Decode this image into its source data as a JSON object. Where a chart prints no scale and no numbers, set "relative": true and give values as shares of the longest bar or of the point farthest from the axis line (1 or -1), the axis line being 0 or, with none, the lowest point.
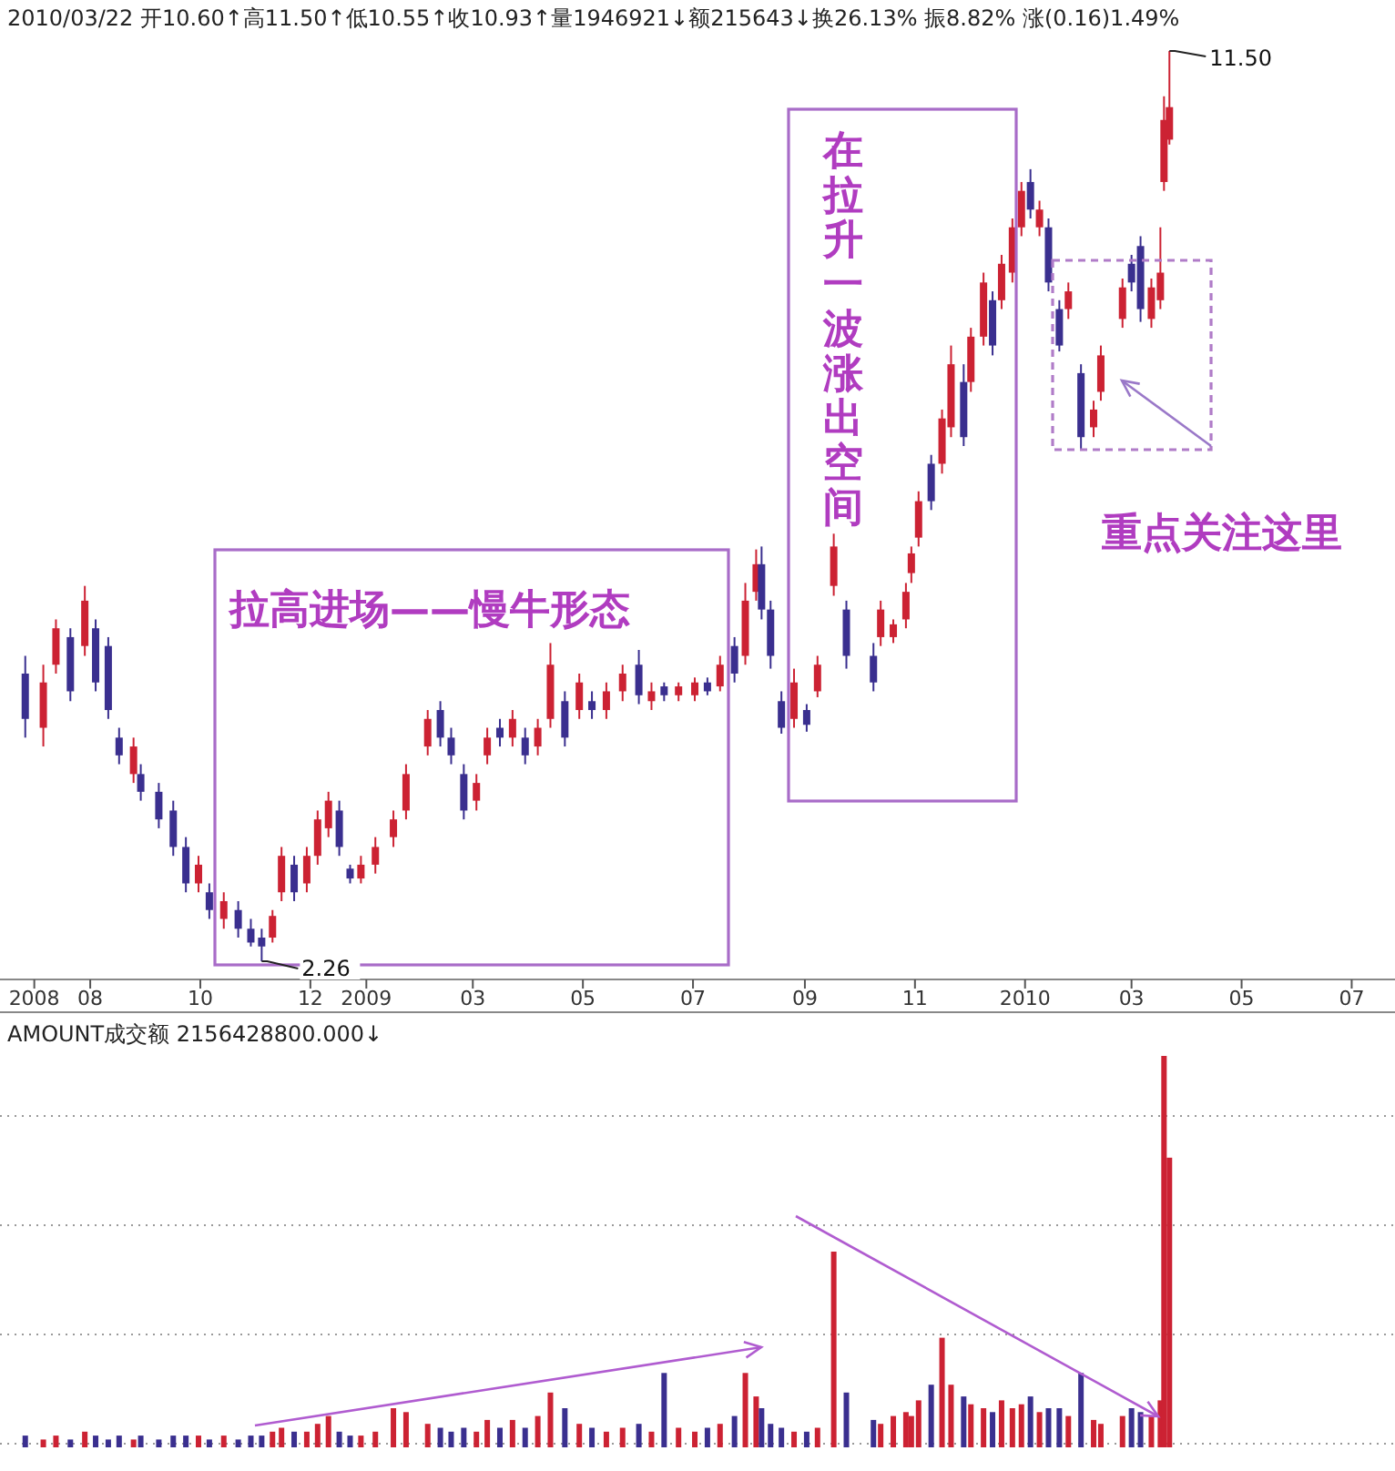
{
  "chart_data": [
    {
      "type": "candlestick",
      "title": "2010/03/22 开10.60↑高11.50↑低10.55↑收10.93↑量1946921↓额215643↓换26.13% 振8.82% 涨(0.16)1.49%",
      "x": [
        "2008-06-26",
        "2008-07-06",
        "2008-07-13",
        "2008-07-21",
        "2008-07-29",
        "2008-08-04",
        "2008-08-11",
        "2008-08-17",
        "2008-08-25",
        "2008-08-29",
        "2008-09-08",
        "2008-09-16",
        "2008-09-23",
        "2008-09-30",
        "2008-10-06",
        "2008-10-14",
        "2008-10-22",
        "2008-10-29",
        "2008-11-04",
        "2008-11-10",
        "2008-11-15",
        "2008-11-22",
        "2008-11-29",
        "2008-12-05",
        "2008-12-11",
        "2008-12-17",
        "2008-12-23",
        "2008-12-29",
        "2009-01-06",
        "2009-01-16",
        "2009-01-23",
        "2009-02-04",
        "2009-02-11",
        "2009-02-17",
        "2009-02-24",
        "2009-03-03",
        "2009-03-09",
        "2009-03-16",
        "2009-03-23",
        "2009-03-30",
        "2009-04-06",
        "2009-04-13",
        "2009-04-21",
        "2009-04-29",
        "2009-05-06",
        "2009-05-14",
        "2009-05-23",
        "2009-06-01",
        "2009-06-08",
        "2009-06-15",
        "2009-06-23",
        "2009-07-02",
        "2009-07-09",
        "2009-07-16",
        "2009-07-24",
        "2009-07-30",
        "2009-08-05",
        "2009-08-08",
        "2009-08-13",
        "2009-08-19",
        "2009-08-26",
        "2009-09-02",
        "2009-09-08",
        "2009-09-17",
        "2009-09-24",
        "2009-10-09",
        "2009-10-13",
        "2009-10-20",
        "2009-10-27",
        "2009-10-30",
        "2009-11-03",
        "2009-11-10",
        "2009-11-16",
        "2009-11-21",
        "2009-11-28",
        "2009-12-02",
        "2009-12-09",
        "2009-12-14",
        "2009-12-19",
        "2009-12-25",
        "2009-12-30",
        "2010-01-04",
        "2010-01-09",
        "2010-01-14",
        "2010-01-20",
        "2010-01-25",
        "2010-02-01",
        "2010-02-08",
        "2010-02-12",
        "2010-02-24",
        "2010-03-01",
        "2010-03-06",
        "2010-03-12",
        "2010-03-17",
        "2010-03-19",
        "2010-03-22"
      ],
      "ohlc": [
        [
          5.18,
          5.36,
          4.53,
          4.72
        ],
        [
          4.63,
          5.27,
          4.44,
          5.09
        ],
        [
          5.27,
          5.73,
          5.18,
          5.64
        ],
        [
          5.55,
          5.64,
          4.9,
          5.0
        ],
        [
          5.46,
          6.07,
          5.36,
          5.92
        ],
        [
          5.64,
          5.73,
          5.0,
          5.09
        ],
        [
          5.46,
          5.55,
          4.72,
          4.81
        ],
        [
          4.53,
          4.63,
          4.26,
          4.35
        ],
        [
          4.16,
          4.53,
          4.07,
          4.44
        ],
        [
          4.16,
          4.26,
          3.89,
          3.98
        ],
        [
          3.98,
          4.07,
          3.61,
          3.7
        ],
        [
          3.79,
          3.89,
          3.33,
          3.42
        ],
        [
          3.42,
          3.52,
          2.96,
          3.05
        ],
        [
          3.05,
          3.33,
          2.96,
          3.24
        ],
        [
          2.96,
          3.05,
          2.69,
          2.78
        ],
        [
          2.69,
          2.96,
          2.59,
          2.87
        ],
        [
          2.78,
          2.87,
          2.5,
          2.59
        ],
        [
          2.59,
          2.69,
          2.41,
          2.45
        ],
        [
          2.5,
          2.59,
          2.26,
          2.41
        ],
        [
          2.5,
          2.78,
          2.45,
          2.72
        ],
        [
          2.96,
          3.42,
          2.87,
          3.33
        ],
        [
          3.24,
          3.33,
          2.87,
          2.96
        ],
        [
          3.05,
          3.42,
          2.96,
          3.33
        ],
        [
          3.33,
          3.79,
          3.24,
          3.7
        ],
        [
          3.61,
          3.98,
          3.52,
          3.89
        ],
        [
          3.79,
          3.89,
          3.33,
          3.42
        ],
        [
          3.2,
          3.24,
          3.05,
          3.1
        ],
        [
          3.1,
          3.33,
          3.05,
          3.24
        ],
        [
          3.24,
          3.52,
          3.15,
          3.42
        ],
        [
          3.52,
          3.79,
          3.42,
          3.7
        ],
        [
          3.79,
          4.26,
          3.7,
          4.16
        ],
        [
          4.44,
          4.81,
          4.35,
          4.72
        ],
        [
          4.81,
          4.9,
          4.44,
          4.53
        ],
        [
          4.53,
          4.63,
          4.26,
          4.35
        ],
        [
          4.16,
          4.26,
          3.7,
          3.79
        ],
        [
          3.89,
          4.16,
          3.79,
          4.07
        ],
        [
          4.35,
          4.63,
          4.26,
          4.53
        ],
        [
          4.63,
          4.72,
          4.44,
          4.53
        ],
        [
          4.53,
          4.81,
          4.44,
          4.72
        ],
        [
          4.53,
          4.63,
          4.26,
          4.35
        ],
        [
          4.44,
          4.72,
          4.35,
          4.63
        ],
        [
          4.72,
          5.49,
          4.63,
          5.27
        ],
        [
          4.9,
          5.0,
          4.44,
          4.53
        ],
        [
          4.81,
          5.18,
          4.72,
          5.09
        ],
        [
          4.9,
          5.0,
          4.72,
          4.81
        ],
        [
          4.81,
          5.09,
          4.72,
          5.0
        ],
        [
          5.0,
          5.27,
          4.9,
          5.18
        ],
        [
          5.27,
          5.42,
          4.87,
          4.96
        ],
        [
          4.9,
          5.09,
          4.81,
          5.0
        ],
        [
          5.05,
          5.09,
          4.9,
          4.96
        ],
        [
          4.96,
          5.09,
          4.9,
          5.05
        ],
        [
          4.96,
          5.14,
          4.9,
          5.09
        ],
        [
          5.09,
          5.14,
          4.96,
          5.0
        ],
        [
          5.05,
          5.36,
          5.0,
          5.27
        ],
        [
          5.46,
          5.55,
          5.09,
          5.18
        ],
        [
          5.36,
          6.1,
          5.27,
          5.92
        ],
        [
          6.01,
          6.44,
          5.92,
          6.29
        ],
        [
          6.29,
          6.47,
          5.73,
          5.83
        ],
        [
          5.83,
          5.92,
          5.23,
          5.36
        ],
        [
          4.9,
          5.0,
          4.57,
          4.63
        ],
        [
          4.72,
          5.23,
          4.63,
          5.09
        ],
        [
          4.81,
          4.87,
          4.59,
          4.66
        ],
        [
          5.0,
          5.36,
          4.94,
          5.27
        ],
        [
          6.07,
          6.6,
          5.97,
          6.47
        ],
        [
          5.83,
          5.92,
          5.23,
          5.36
        ],
        [
          5.36,
          5.49,
          5.0,
          5.09
        ],
        [
          5.55,
          5.92,
          5.46,
          5.83
        ],
        [
          5.55,
          5.73,
          5.49,
          5.68
        ],
        [
          5.73,
          6.1,
          5.64,
          6.01
        ],
        [
          6.2,
          6.47,
          6.1,
          6.4
        ],
        [
          6.56,
          7.03,
          6.47,
          6.93
        ],
        [
          7.31,
          7.4,
          6.84,
          6.93
        ],
        [
          7.31,
          7.86,
          7.21,
          7.77
        ],
        [
          7.68,
          8.51,
          7.58,
          8.32
        ],
        [
          8.14,
          8.32,
          7.49,
          7.58
        ],
        [
          8.14,
          8.69,
          8.04,
          8.6
        ],
        [
          8.6,
          9.25,
          8.51,
          9.15
        ],
        [
          8.97,
          9.06,
          8.41,
          8.51
        ],
        [
          8.97,
          9.43,
          8.88,
          9.34
        ],
        [
          9.25,
          9.8,
          9.15,
          9.71
        ],
        [
          9.71,
          10.17,
          9.62,
          10.08
        ],
        [
          10.17,
          10.3,
          9.8,
          9.89
        ],
        [
          9.71,
          9.98,
          9.62,
          9.89
        ],
        [
          9.71,
          9.8,
          9.06,
          9.15
        ],
        [
          8.88,
          8.97,
          8.45,
          8.51
        ],
        [
          8.88,
          9.15,
          8.78,
          9.06
        ],
        [
          8.23,
          8.32,
          7.45,
          7.58
        ],
        [
          7.68,
          7.95,
          7.58,
          7.86
        ],
        [
          8.04,
          8.51,
          7.95,
          8.41
        ],
        [
          8.78,
          9.19,
          8.69,
          9.1
        ],
        [
          9.34,
          9.43,
          9.06,
          9.15
        ],
        [
          9.52,
          9.62,
          8.75,
          8.88
        ],
        [
          8.78,
          9.19,
          8.69,
          9.1
        ],
        [
          8.97,
          9.71,
          8.88,
          9.25
        ],
        [
          10.17,
          11.04,
          10.08,
          10.8
        ],
        [
          10.6,
          11.5,
          10.55,
          10.93
        ]
      ],
      "colors": [
        "#3a2f8f",
        "#cc2233",
        "#cc2233",
        "#3a2f8f",
        "#cc2233",
        "#3a2f8f",
        "#3a2f8f",
        "#3a2f8f",
        "#cc2233",
        "#3a2f8f",
        "#3a2f8f",
        "#3a2f8f",
        "#3a2f8f",
        "#cc2233",
        "#3a2f8f",
        "#cc2233",
        "#3a2f8f",
        "#3a2f8f",
        "#3a2f8f",
        "#cc2233",
        "#cc2233",
        "#3a2f8f",
        "#cc2233",
        "#cc2233",
        "#cc2233",
        "#3a2f8f",
        "#3a2f8f",
        "#cc2233",
        "#cc2233",
        "#cc2233",
        "#cc2233",
        "#cc2233",
        "#3a2f8f",
        "#3a2f8f",
        "#3a2f8f",
        "#cc2233",
        "#cc2233",
        "#3a2f8f",
        "#cc2233",
        "#3a2f8f",
        "#cc2233",
        "#cc2233",
        "#3a2f8f",
        "#cc2233",
        "#3a2f8f",
        "#cc2233",
        "#cc2233",
        "#3a2f8f",
        "#cc2233",
        "#3a2f8f",
        "#cc2233",
        "#cc2233",
        "#3a2f8f",
        "#cc2233",
        "#3a2f8f",
        "#cc2233",
        "#cc2233",
        "#3a2f8f",
        "#3a2f8f",
        "#3a2f8f",
        "#cc2233",
        "#3a2f8f",
        "#cc2233",
        "#cc2233",
        "#3a2f8f",
        "#3a2f8f",
        "#cc2233",
        "#cc2233",
        "#cc2233",
        "#cc2233",
        "#cc2233",
        "#3a2f8f",
        "#cc2233",
        "#cc2233",
        "#3a2f8f",
        "#cc2233",
        "#cc2233",
        "#3a2f8f",
        "#cc2233",
        "#cc2233",
        "#cc2233",
        "#3a2f8f",
        "#cc2233",
        "#3a2f8f",
        "#3a2f8f",
        "#cc2233",
        "#3a2f8f",
        "#cc2233",
        "#cc2233",
        "#cc2233",
        "#3a2f8f",
        "#3a2f8f",
        "#cc2233",
        "#cc2233",
        "#cc2233",
        "#cc2233"
      ],
      "xlim": [
        "2008-06-12",
        "2010-07-25"
      ],
      "xticks": [
        {
          "value": "2008-07-01",
          "label": "2008"
        },
        {
          "value": "2008-08-01",
          "label": "08"
        },
        {
          "value": "2008-10-01",
          "label": "10"
        },
        {
          "value": "2008-12-01",
          "label": "12"
        },
        {
          "value": "2009-01-01",
          "label": "2009"
        },
        {
          "value": "2009-03-01",
          "label": "03"
        },
        {
          "value": "2009-05-01",
          "label": "05"
        },
        {
          "value": "2009-07-01",
          "label": "07"
        },
        {
          "value": "2009-09-01",
          "label": "09"
        },
        {
          "value": "2009-11-01",
          "label": "11"
        },
        {
          "value": "2010-01-01",
          "label": "2010"
        },
        {
          "value": "2010-03-01",
          "label": "03"
        },
        {
          "value": "2010-05-01",
          "label": "05"
        },
        {
          "value": "2010-07-01",
          "label": "07"
        }
      ],
      "tick_labels": "x",
      "annotations": [
        {
          "text": "2.26",
          "x": "2008-11-04",
          "y": 2.26
        },
        {
          "text": "11.50",
          "x": "2010-03-22",
          "y": 11.5
        },
        "拉高进场——慢牛形态",
        "在拉升一波涨出空间",
        "重点关注这里"
      ]
    },
    {
      "type": "bar",
      "title": "AMOUNT成交额 2156428800.000↓",
      "relative": true,
      "grid": "y",
      "xlim": [
        "2008-06-12",
        "2010-07-25"
      ],
      "x": [
        "2008-06-26",
        "2008-07-06",
        "2008-07-13",
        "2008-07-21",
        "2008-07-29",
        "2008-08-04",
        "2008-08-11",
        "2008-08-17",
        "2008-08-25",
        "2008-08-29",
        "2008-09-08",
        "2008-09-16",
        "2008-09-23",
        "2008-09-30",
        "2008-10-06",
        "2008-10-14",
        "2008-10-22",
        "2008-10-29",
        "2008-11-04",
        "2008-11-10",
        "2008-11-15",
        "2008-11-22",
        "2008-11-29",
        "2008-12-05",
        "2008-12-11",
        "2008-12-17",
        "2008-12-23",
        "2008-12-29",
        "2009-01-06",
        "2009-01-16",
        "2009-01-23",
        "2009-02-04",
        "2009-02-11",
        "2009-02-17",
        "2009-02-24",
        "2009-03-03",
        "2009-03-09",
        "2009-03-16",
        "2009-03-23",
        "2009-03-30",
        "2009-04-06",
        "2009-04-13",
        "2009-04-21",
        "2009-04-29",
        "2009-05-06",
        "2009-05-14",
        "2009-05-23",
        "2009-06-01",
        "2009-06-08",
        "2009-06-15",
        "2009-06-23",
        "2009-07-02",
        "2009-07-09",
        "2009-07-16",
        "2009-07-24",
        "2009-07-30",
        "2009-08-05",
        "2009-08-08",
        "2009-08-13",
        "2009-08-19",
        "2009-08-26",
        "2009-09-02",
        "2009-09-08",
        "2009-09-17",
        "2009-09-24",
        "2009-10-09",
        "2009-10-13",
        "2009-10-20",
        "2009-10-27",
        "2009-10-30",
        "2009-11-03",
        "2009-11-10",
        "2009-11-16",
        "2009-11-21",
        "2009-11-28",
        "2009-12-02",
        "2009-12-09",
        "2009-12-14",
        "2009-12-19",
        "2009-12-25",
        "2009-12-30",
        "2010-01-04",
        "2010-01-09",
        "2010-01-14",
        "2010-01-20",
        "2010-01-25",
        "2010-02-01",
        "2010-02-08",
        "2010-02-12",
        "2010-02-24",
        "2010-03-01",
        "2010-03-06",
        "2010-03-12",
        "2010-03-17",
        "2010-03-19",
        "2010-03-22"
      ],
      "values": [
        0.03,
        0.02,
        0.03,
        0.02,
        0.04,
        0.03,
        0.02,
        0.03,
        0.02,
        0.03,
        0.02,
        0.03,
        0.03,
        0.03,
        0.02,
        0.03,
        0.02,
        0.03,
        0.03,
        0.04,
        0.05,
        0.04,
        0.04,
        0.06,
        0.08,
        0.04,
        0.03,
        0.03,
        0.04,
        0.1,
        0.09,
        0.06,
        0.05,
        0.04,
        0.05,
        0.04,
        0.07,
        0.05,
        0.07,
        0.05,
        0.08,
        0.14,
        0.1,
        0.06,
        0.05,
        0.04,
        0.05,
        0.06,
        0.04,
        0.19,
        0.05,
        0.04,
        0.05,
        0.06,
        0.08,
        0.19,
        0.13,
        0.1,
        0.06,
        0.05,
        0.04,
        0.04,
        0.05,
        0.5,
        0.14,
        0.07,
        0.06,
        0.08,
        0.09,
        0.08,
        0.12,
        0.16,
        0.28,
        0.16,
        0.13,
        0.11,
        0.1,
        0.09,
        0.12,
        0.1,
        0.11,
        0.13,
        0.09,
        0.1,
        0.1,
        0.08,
        0.19,
        0.07,
        0.06,
        0.08,
        0.1,
        0.09,
        0.08,
        0.12,
        1,
        0.74
      ],
      "colors": [
        "#3a2f8f",
        "#cc2233",
        "#cc2233",
        "#3a2f8f",
        "#cc2233",
        "#3a2f8f",
        "#3a2f8f",
        "#3a2f8f",
        "#cc2233",
        "#3a2f8f",
        "#3a2f8f",
        "#3a2f8f",
        "#3a2f8f",
        "#cc2233",
        "#3a2f8f",
        "#cc2233",
        "#3a2f8f",
        "#3a2f8f",
        "#3a2f8f",
        "#cc2233",
        "#cc2233",
        "#3a2f8f",
        "#cc2233",
        "#cc2233",
        "#cc2233",
        "#3a2f8f",
        "#3a2f8f",
        "#cc2233",
        "#cc2233",
        "#cc2233",
        "#cc2233",
        "#cc2233",
        "#3a2f8f",
        "#3a2f8f",
        "#3a2f8f",
        "#cc2233",
        "#cc2233",
        "#3a2f8f",
        "#cc2233",
        "#3a2f8f",
        "#cc2233",
        "#cc2233",
        "#3a2f8f",
        "#cc2233",
        "#3a2f8f",
        "#cc2233",
        "#cc2233",
        "#3a2f8f",
        "#cc2233",
        "#3a2f8f",
        "#cc2233",
        "#cc2233",
        "#3a2f8f",
        "#cc2233",
        "#3a2f8f",
        "#cc2233",
        "#cc2233",
        "#3a2f8f",
        "#3a2f8f",
        "#3a2f8f",
        "#cc2233",
        "#3a2f8f",
        "#cc2233",
        "#cc2233",
        "#3a2f8f",
        "#3a2f8f",
        "#cc2233",
        "#cc2233",
        "#cc2233",
        "#cc2233",
        "#cc2233",
        "#3a2f8f",
        "#cc2233",
        "#cc2233",
        "#3a2f8f",
        "#cc2233",
        "#cc2233",
        "#3a2f8f",
        "#cc2233",
        "#cc2233",
        "#cc2233",
        "#3a2f8f",
        "#cc2233",
        "#3a2f8f",
        "#3a2f8f",
        "#cc2233",
        "#3a2f8f",
        "#cc2233",
        "#cc2233",
        "#cc2233",
        "#3a2f8f",
        "#3a2f8f",
        "#cc2233",
        "#cc2233",
        "#cc2233",
        "#cc2233"
      ]
    }
  ]
}
